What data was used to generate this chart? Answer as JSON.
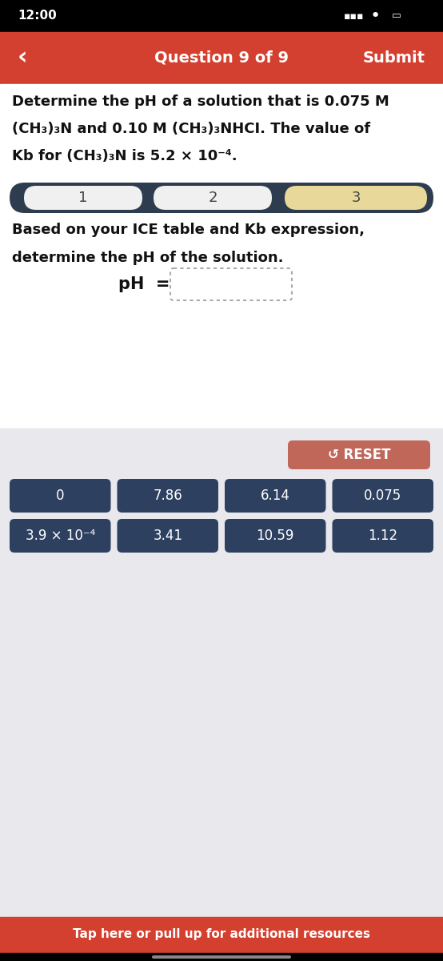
{
  "status_bar_time": "12:00",
  "status_bar_bg": "#000000",
  "header_bg": "#d44030",
  "header_text": "Question 9 of 9",
  "header_submit": "Submit",
  "header_back_arrow": "‹",
  "question_text_line1": "Determine the pH of a solution that is 0.075 M",
  "question_text_line2": "(CH₃)₃N and 0.10 M (CH₃)₃NHCI. The value of",
  "question_text_line3": "Kb for (CH₃)₃N is 5.2 × 10⁻⁴.",
  "step_bar_bg": "#2e3c4f",
  "step_active_bg": "#e8d89a",
  "step_inactive_bg": "#f0f0f0",
  "sub_question_line1": "Based on your ICE table and Kb expression,",
  "sub_question_line2": "determine the pH of the solution.",
  "ph_label": "pH  =",
  "main_bg": "#e8e8ed",
  "content_bg": "#ffffff",
  "button_bg": "#2e4060",
  "button_text_color": "#ffffff",
  "reset_bg": "#c0675a",
  "reset_text": "RESET",
  "buttons_row1": [
    "0",
    "7.86",
    "6.14",
    "0.075"
  ],
  "buttons_row2": [
    "3.9 × 10⁻⁴",
    "3.41",
    "10.59",
    "1.12"
  ],
  "footer_bg": "#d44030",
  "footer_text": "Tap here or pull up for additional resources",
  "bottom_bar_bg": "#000000"
}
